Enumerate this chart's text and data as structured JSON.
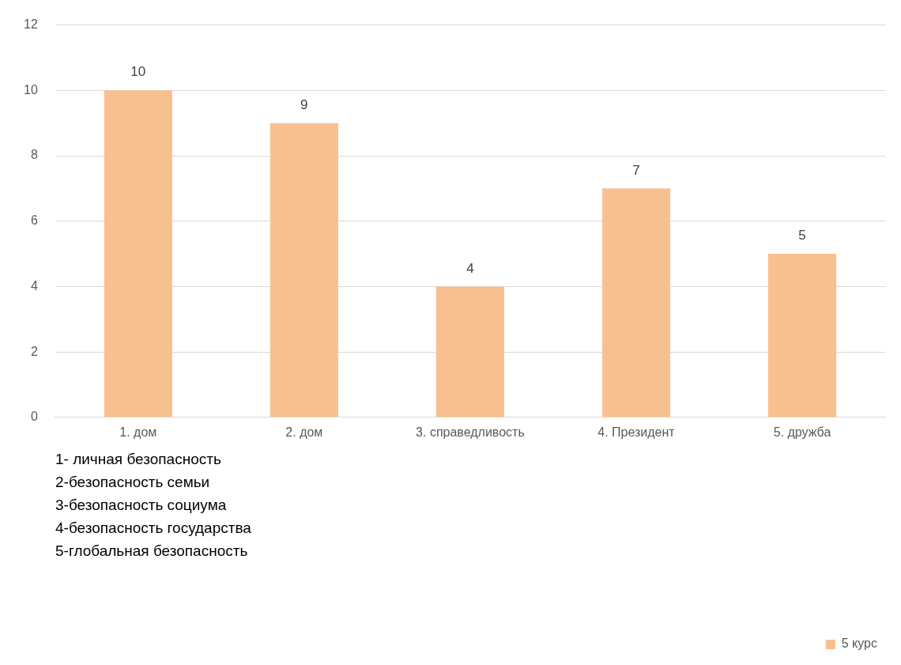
{
  "chart_data": {
    "type": "bar",
    "categories": [
      "1. дом",
      "2. дом",
      "3. справедливость",
      "4. Президент",
      "5. дружба"
    ],
    "series": [
      {
        "name": "5 курс",
        "color": "#f8c08f",
        "values": [
          10,
          9,
          4,
          7,
          5
        ]
      }
    ],
    "ylim": [
      0,
      12
    ],
    "yticks": [
      0,
      2,
      4,
      6,
      8,
      10,
      12
    ],
    "grid": "y",
    "legend": "bottom right",
    "data_labels": true,
    "annotations": [
      "1- личная безопасность",
      "2-безопасность семьи",
      "3-безопасность социума",
      "4-безопасность государства",
      "5-глобальная безопасность"
    ]
  }
}
